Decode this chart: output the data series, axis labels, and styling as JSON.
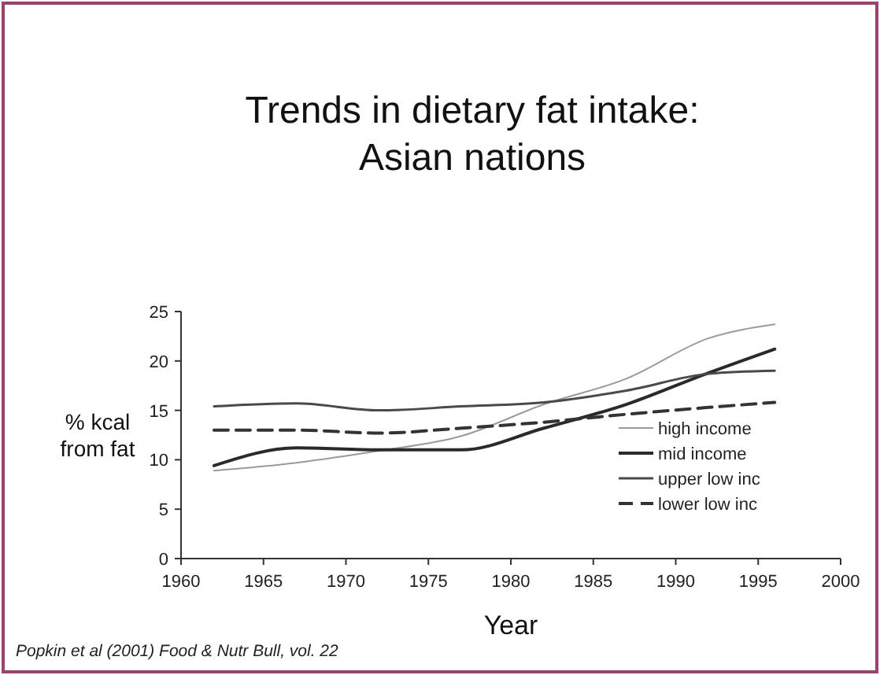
{
  "chart_data": {
    "type": "line",
    "title": "Trends in dietary fat intake:\nAsian nations",
    "xlabel": "Year",
    "ylabel": "% kcal\nfrom fat",
    "x": [
      1962,
      1967,
      1972,
      1977,
      1982,
      1987,
      1992,
      1996
    ],
    "series": [
      {
        "name": "high income",
        "color": "#9a9a9a",
        "values": [
          8.9,
          9.7,
          10.9,
          12.4,
          15.6,
          18.2,
          22.3,
          23.7
        ]
      },
      {
        "name": "mid income",
        "color": "#2a2a2a",
        "values": [
          9.4,
          11.2,
          11.0,
          11.0,
          13.2,
          15.6,
          18.8,
          21.2
        ]
      },
      {
        "name": "upper low inc",
        "color": "#4a4a4a",
        "values": [
          15.4,
          15.7,
          15.0,
          15.4,
          15.8,
          17.0,
          18.7,
          19.0
        ]
      },
      {
        "name": "lower low inc",
        "color": "#333333",
        "line_style": "dashed",
        "values": [
          13.0,
          13.0,
          12.7,
          13.2,
          13.8,
          14.6,
          15.3,
          15.8
        ]
      }
    ],
    "xlim": [
      1960,
      2000
    ],
    "xticks": [
      1960,
      1965,
      1970,
      1975,
      1980,
      1985,
      1990,
      1995,
      2000
    ],
    "ylim": [
      0,
      25
    ],
    "yticks": [
      0,
      5,
      10,
      15,
      20,
      25
    ],
    "grid": false,
    "legend": "bottom right",
    "marker": "none",
    "annotations": [
      "Popkin et al (2001) Food & Nutr Bull, vol. 22"
    ]
  }
}
